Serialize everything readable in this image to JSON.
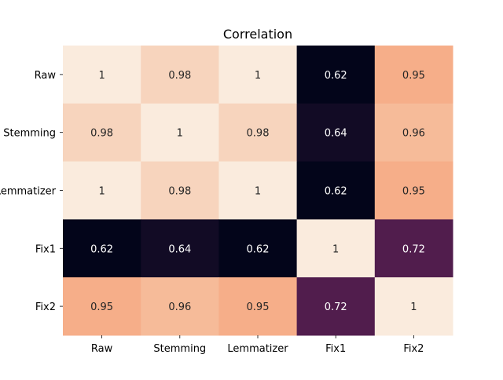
{
  "chart_data": {
    "type": "heatmap",
    "title": "Correlation",
    "xlabel": "",
    "ylabel": "",
    "x_categories": [
      "Raw",
      "Stemming",
      "Lemmatizer",
      "Fix1",
      "Fix2"
    ],
    "y_categories": [
      "Raw",
      "Stemming",
      "Lemmatizer",
      "Fix1",
      "Fix2"
    ],
    "values": [
      [
        1,
        0.98,
        1,
        0.62,
        0.95
      ],
      [
        0.98,
        1,
        0.98,
        0.64,
        0.96
      ],
      [
        1,
        0.98,
        1,
        0.62,
        0.95
      ],
      [
        0.62,
        0.64,
        0.62,
        1,
        0.72
      ],
      [
        0.95,
        0.96,
        0.95,
        0.72,
        1
      ]
    ],
    "value_labels": [
      [
        "1",
        "0.98",
        "1",
        "0.62",
        "0.95"
      ],
      [
        "0.98",
        "1",
        "0.98",
        "0.64",
        "0.96"
      ],
      [
        "1",
        "0.98",
        "1",
        "0.62",
        "0.95"
      ],
      [
        "0.62",
        "0.64",
        "0.62",
        "1",
        "0.72"
      ],
      [
        "0.95",
        "0.96",
        "0.95",
        "0.72",
        "1"
      ]
    ],
    "value_range": [
      0.62,
      1
    ],
    "colormap": "rocket",
    "colorbar": false,
    "annotations": true,
    "grid": false,
    "legend": "none"
  }
}
